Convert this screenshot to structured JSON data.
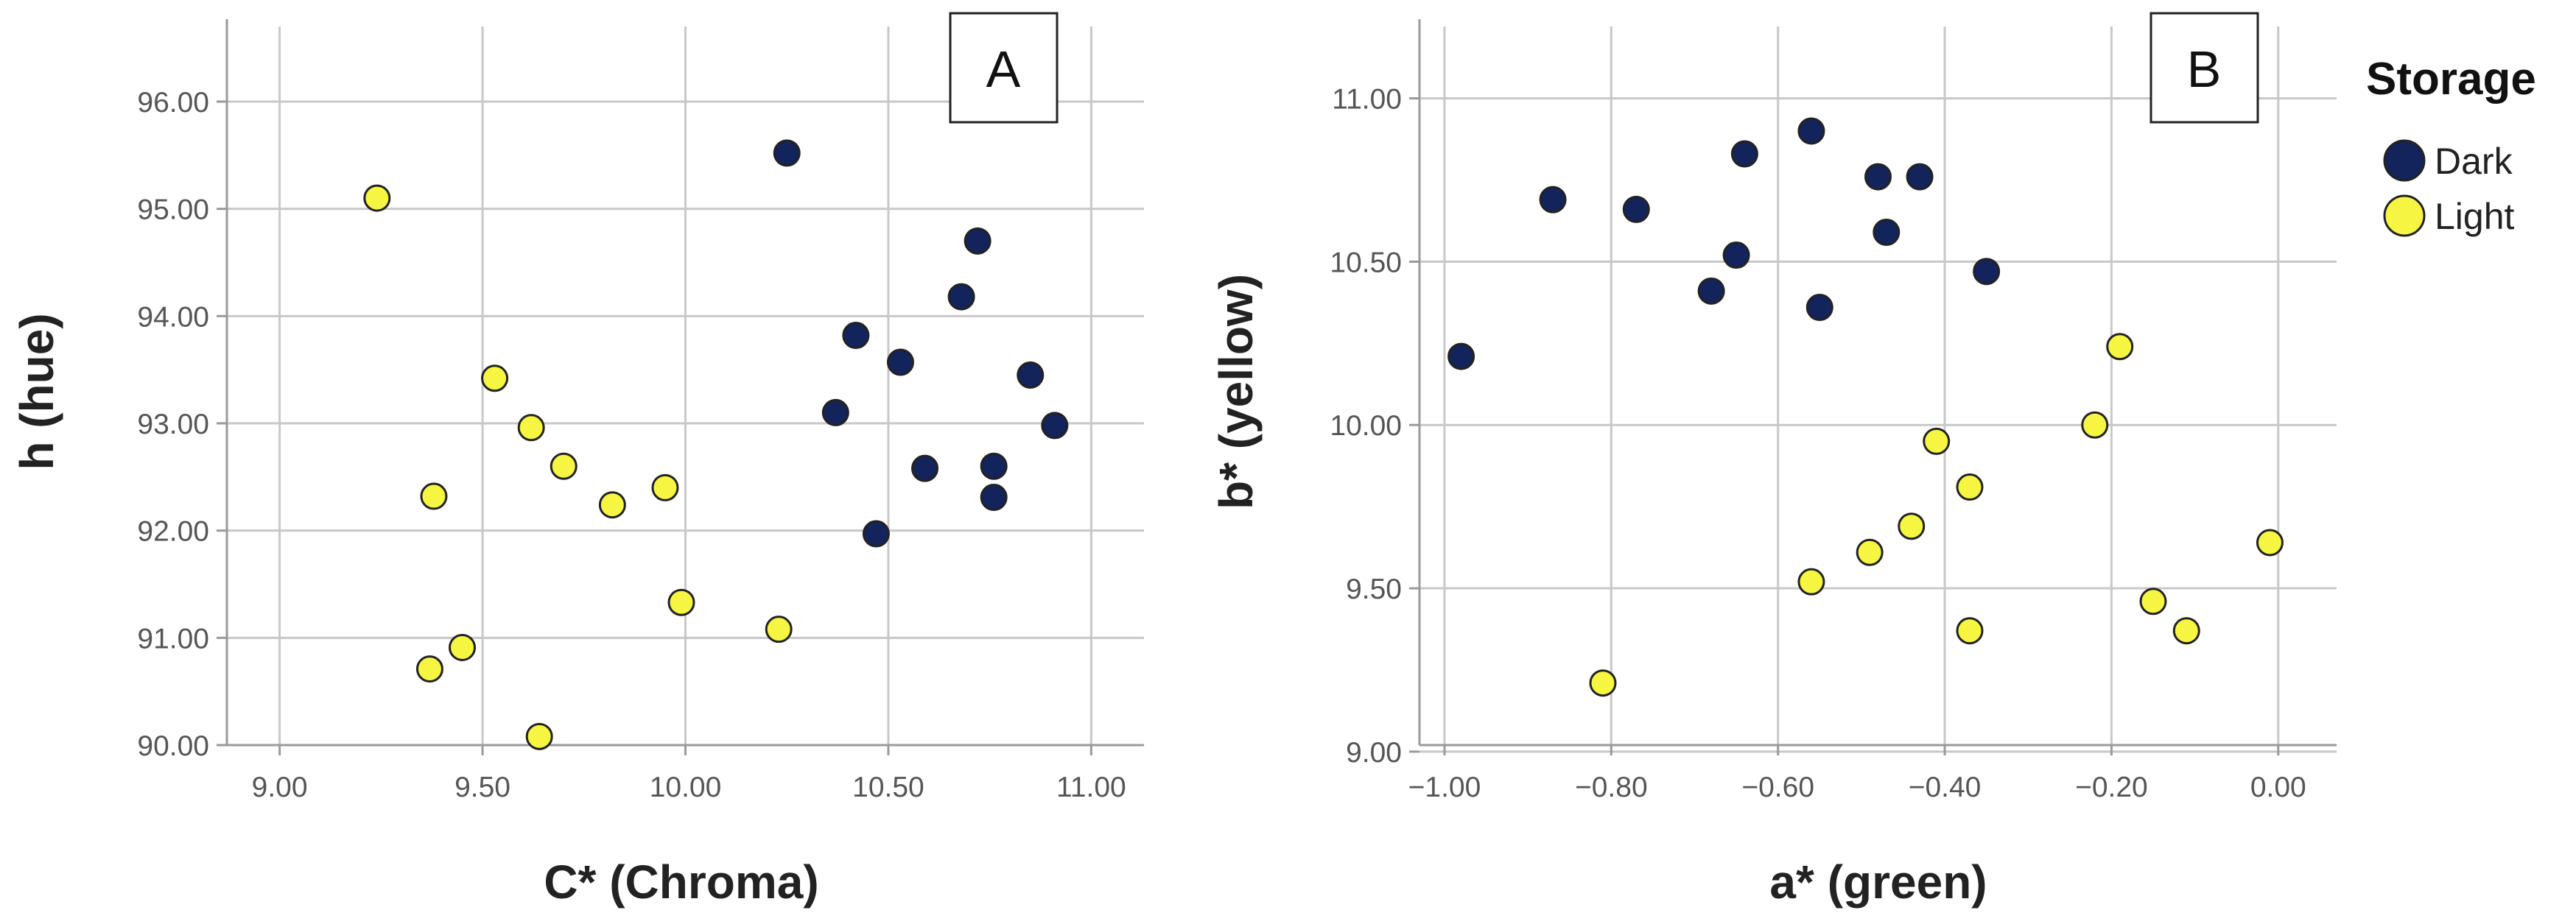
{
  "colors": {
    "dark": "#13245c",
    "light": "#f5f542",
    "outline": "#222222",
    "grid": "#c8c8c8"
  },
  "legend": {
    "title": "Storage",
    "items": [
      {
        "label": "Dark",
        "color": "#13245c"
      },
      {
        "label": "Light",
        "color": "#f5f542"
      }
    ]
  },
  "chart_data": [
    {
      "type": "scatter",
      "panel_label": "A",
      "xlabel": "C* (Chroma)",
      "ylabel": "h (hue)",
      "xlim": [
        8.87,
        11.13
      ],
      "ylim": [
        90.0,
        96.7
      ],
      "xticks": [
        9.0,
        9.5,
        10.0,
        10.5,
        11.0
      ],
      "xtick_labels": [
        "9.00",
        "9.50",
        "10.00",
        "10.50",
        "11.00"
      ],
      "yticks": [
        90,
        91,
        92,
        93,
        94,
        95,
        96
      ],
      "ytick_labels": [
        "90.00",
        "91.00",
        "92.00",
        "93.00",
        "94.00",
        "95.00",
        "96.00"
      ],
      "grid": true,
      "series": [
        {
          "name": "Dark",
          "points": [
            [
              10.25,
              95.52
            ],
            [
              10.72,
              94.7
            ],
            [
              10.68,
              94.18
            ],
            [
              10.42,
              93.82
            ],
            [
              10.53,
              93.57
            ],
            [
              10.85,
              93.45
            ],
            [
              10.37,
              93.1
            ],
            [
              10.91,
              92.98
            ],
            [
              10.59,
              92.58
            ],
            [
              10.76,
              92.6
            ],
            [
              10.76,
              92.31
            ],
            [
              10.47,
              91.97
            ]
          ]
        },
        {
          "name": "Light",
          "points": [
            [
              9.24,
              95.1
            ],
            [
              9.53,
              93.42
            ],
            [
              9.62,
              92.96
            ],
            [
              9.7,
              92.6
            ],
            [
              9.95,
              92.4
            ],
            [
              9.38,
              92.32
            ],
            [
              9.82,
              92.24
            ],
            [
              9.99,
              91.33
            ],
            [
              10.23,
              91.08
            ],
            [
              9.45,
              90.91
            ],
            [
              9.37,
              90.71
            ],
            [
              9.64,
              90.08
            ]
          ]
        }
      ]
    },
    {
      "type": "scatter",
      "panel_label": "B",
      "xlabel": "a* (green)",
      "ylabel": "b* (yellow)",
      "xlim": [
        -1.03,
        0.07
      ],
      "ylim": [
        9.02,
        11.22
      ],
      "xticks": [
        -1.0,
        -0.8,
        -0.6,
        -0.4,
        -0.2,
        0.0
      ],
      "xtick_labels": [
        "−1.00",
        "−0.80",
        "−0.60",
        "−0.40",
        "−0.20",
        "0.00"
      ],
      "yticks": [
        9.0,
        9.5,
        10.0,
        10.5,
        11.0
      ],
      "ytick_labels": [
        "9.00",
        "9.50",
        "10.00",
        "10.50",
        "11.00"
      ],
      "grid": true,
      "series": [
        {
          "name": "Dark",
          "points": [
            [
              -0.56,
              10.9
            ],
            [
              -0.64,
              10.83
            ],
            [
              -0.48,
              10.76
            ],
            [
              -0.43,
              10.76
            ],
            [
              -0.87,
              10.69
            ],
            [
              -0.77,
              10.66
            ],
            [
              -0.47,
              10.59
            ],
            [
              -0.65,
              10.52
            ],
            [
              -0.35,
              10.47
            ],
            [
              -0.68,
              10.41
            ],
            [
              -0.55,
              10.36
            ],
            [
              -0.98,
              10.21
            ]
          ]
        },
        {
          "name": "Light",
          "points": [
            [
              -0.19,
              10.24
            ],
            [
              -0.22,
              10.0
            ],
            [
              -0.41,
              9.95
            ],
            [
              -0.37,
              9.81
            ],
            [
              -0.44,
              9.69
            ],
            [
              -0.01,
              9.64
            ],
            [
              -0.49,
              9.61
            ],
            [
              -0.56,
              9.52
            ],
            [
              -0.15,
              9.46
            ],
            [
              -0.11,
              9.37
            ],
            [
              -0.37,
              9.37
            ],
            [
              -0.81,
              9.21
            ]
          ]
        }
      ]
    }
  ]
}
